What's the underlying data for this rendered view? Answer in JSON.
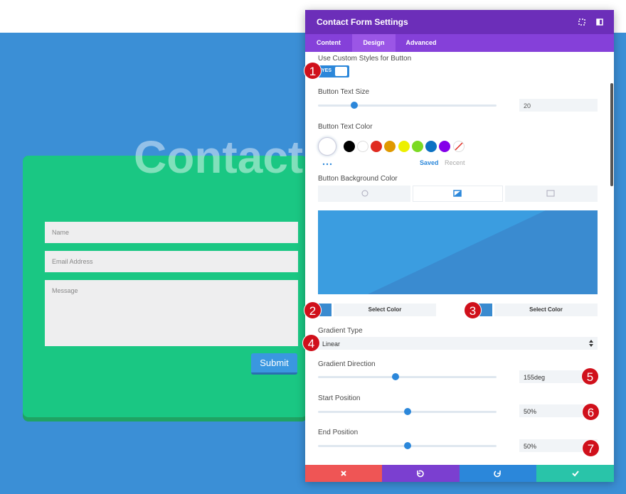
{
  "background": {
    "heading": "Contact",
    "form": {
      "fields": [
        "Name",
        "Email Address",
        "Message"
      ],
      "submit": "Submit"
    }
  },
  "panel": {
    "title": "Contact Form Settings",
    "tabs": [
      "Content",
      "Design",
      "Advanced"
    ],
    "custom_styles": {
      "label": "Use Custom Styles for Button",
      "toggle": "YES"
    },
    "text_size": {
      "label": "Button Text Size",
      "value": "20"
    },
    "text_color": {
      "label": "Button Text Color",
      "saved": "Saved",
      "recent": "Recent"
    },
    "background_color": {
      "label": "Button Background Color",
      "select_color": [
        "Select Color",
        "Select Color"
      ]
    },
    "gradient_type": {
      "label": "Gradient Type",
      "value": "Linear"
    },
    "gradient_direction": {
      "label": "Gradient Direction",
      "value": "155deg"
    },
    "start_position": {
      "label": "Start Position",
      "value": "50%"
    },
    "end_position": {
      "label": "End Position",
      "value": "50%"
    }
  },
  "badges": [
    "1",
    "2",
    "3",
    "4",
    "5",
    "6",
    "7"
  ]
}
